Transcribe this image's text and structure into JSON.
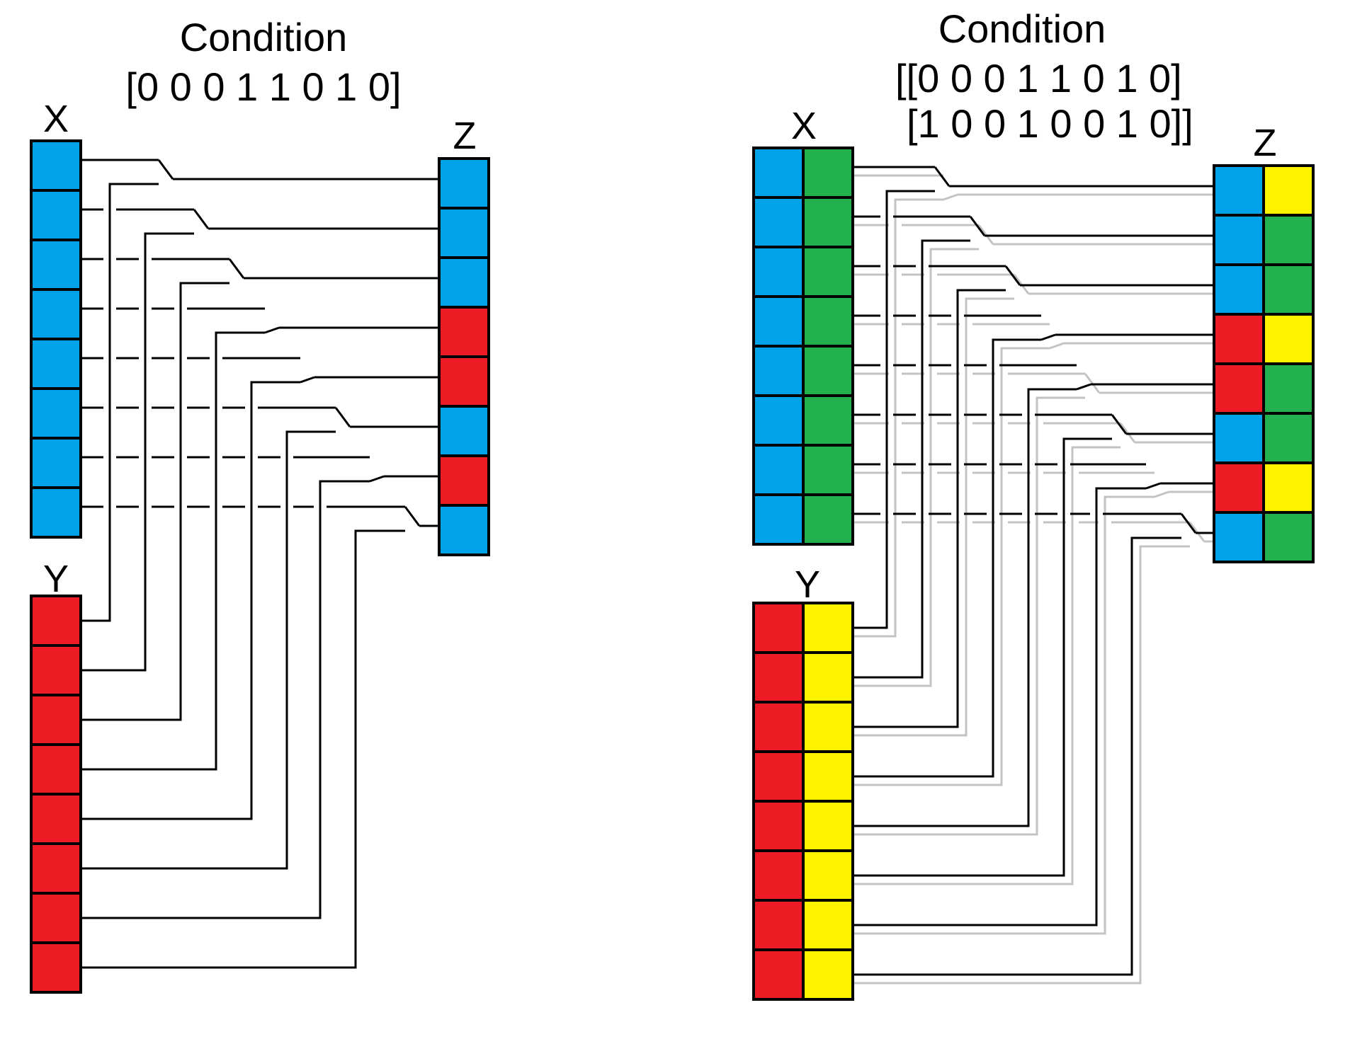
{
  "panels": [
    {
      "id": "left",
      "title": "Condition",
      "condition_lines": [
        "[0 0 0 1 1 0 1 0]"
      ],
      "condition": [
        [
          0,
          0,
          0,
          1,
          1,
          0,
          1,
          0
        ]
      ],
      "label_x": "X",
      "label_y": "Y",
      "label_z": "Z",
      "x_cols": [
        "blue"
      ],
      "y_cols": [
        "red"
      ],
      "z_cols": [
        [
          "blue",
          "blue",
          "blue",
          "red",
          "red",
          "blue",
          "red",
          "blue"
        ]
      ]
    },
    {
      "id": "right",
      "title": "Condition",
      "condition_lines": [
        "[[0 0 0 1 1 0 1 0]",
        "[1 0 0 1 0 0 1 0]]"
      ],
      "condition": [
        [
          0,
          0,
          0,
          1,
          1,
          0,
          1,
          0
        ],
        [
          1,
          0,
          0,
          1,
          0,
          0,
          1,
          0
        ]
      ],
      "label_x": "X",
      "label_y": "Y",
      "label_z": "Z",
      "x_cols": [
        "blue",
        "green"
      ],
      "y_cols": [
        "red",
        "yellow"
      ],
      "z_cols": [
        [
          "blue",
          "blue",
          "blue",
          "red",
          "red",
          "blue",
          "red",
          "blue"
        ],
        [
          "yellow",
          "green",
          "green",
          "yellow",
          "green",
          "green",
          "yellow",
          "green"
        ]
      ]
    }
  ],
  "colors": {
    "blue": "#00A2E8",
    "red": "#ED1C24",
    "green": "#22B14C",
    "yellow": "#FFF200",
    "wire": "#000000",
    "wire_secondary": "#C3C3C3"
  }
}
